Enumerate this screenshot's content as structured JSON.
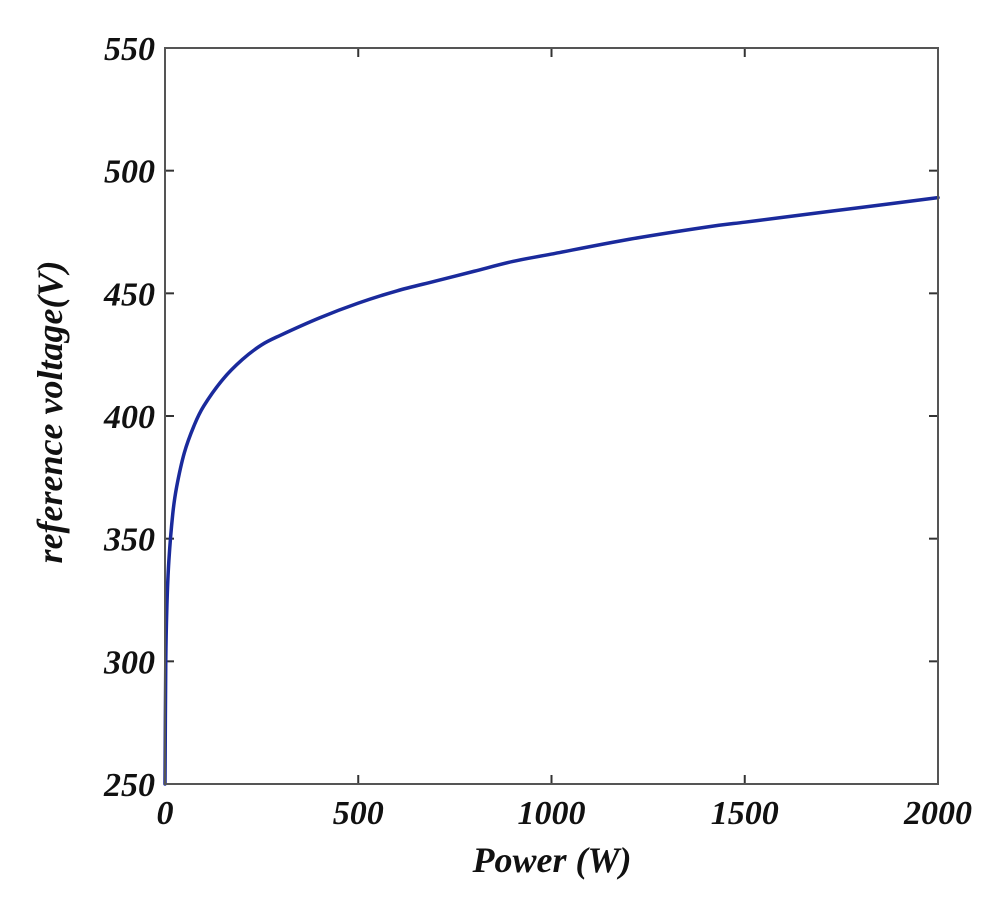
{
  "chart_data": {
    "type": "line",
    "title": "",
    "xlabel": "Power (W)",
    "ylabel": "reference voltage(V)",
    "xlim": [
      0,
      2000
    ],
    "ylim": [
      250,
      550
    ],
    "xticks": [
      0,
      500,
      1000,
      1500,
      2000
    ],
    "yticks": [
      250,
      300,
      350,
      400,
      450,
      500,
      550
    ],
    "xtick_labels": [
      "0",
      "500",
      "1000",
      "1500",
      "2000"
    ],
    "ytick_labels": [
      "250",
      "300",
      "350",
      "400",
      "450",
      "500",
      "550"
    ],
    "grid": false,
    "legend": "none",
    "line_color": "#1a2a9c",
    "series": [
      {
        "x": [
          0,
          2,
          5,
          10,
          20,
          30,
          50,
          75,
          100,
          150,
          200,
          250,
          300,
          400,
          500,
          600,
          700,
          800,
          900,
          1000,
          1200,
          1400,
          1500,
          1600,
          1800,
          2000
        ],
        "y": [
          250,
          300,
          323,
          341,
          360,
          371,
          385,
          396,
          404,
          415,
          423,
          429,
          433,
          440,
          446,
          451,
          455,
          459,
          463,
          466,
          472,
          477,
          479,
          481,
          485,
          489
        ]
      }
    ]
  }
}
